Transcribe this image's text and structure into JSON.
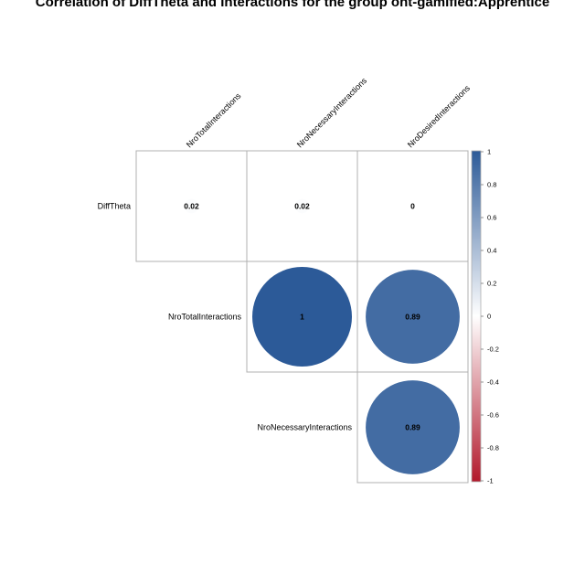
{
  "chart_data": {
    "type": "heatmap",
    "title": "Correlation of DiffTheta and Interactions for the group ont-gamified:Apprentice",
    "row_labels": [
      "DiffTheta",
      "NroTotalInteractions",
      "NroNecessaryInteractions"
    ],
    "col_labels": [
      "NroTotalInteractions",
      "NroNecessaryInteractions",
      "NroDesiredInteractions"
    ],
    "values": [
      [
        0.02,
        0.02,
        0
      ],
      [
        1,
        0.89
      ],
      [
        0.89
      ]
    ],
    "value_labels": [
      [
        "0.02",
        "0.02",
        "0"
      ],
      [
        "1",
        "0.89"
      ],
      [
        "0.89"
      ]
    ],
    "colorbar": {
      "ticks": [
        "1",
        "0.8",
        "0.6",
        "0.4",
        "0.2",
        "0",
        "-0.2",
        "-0.4",
        "-0.6",
        "-0.8",
        "-1"
      ],
      "range": [
        -1,
        1
      ]
    },
    "colors": {
      "positive": "#2c5a98",
      "neutral": "#ffffff",
      "negative": "#b2182b"
    }
  }
}
